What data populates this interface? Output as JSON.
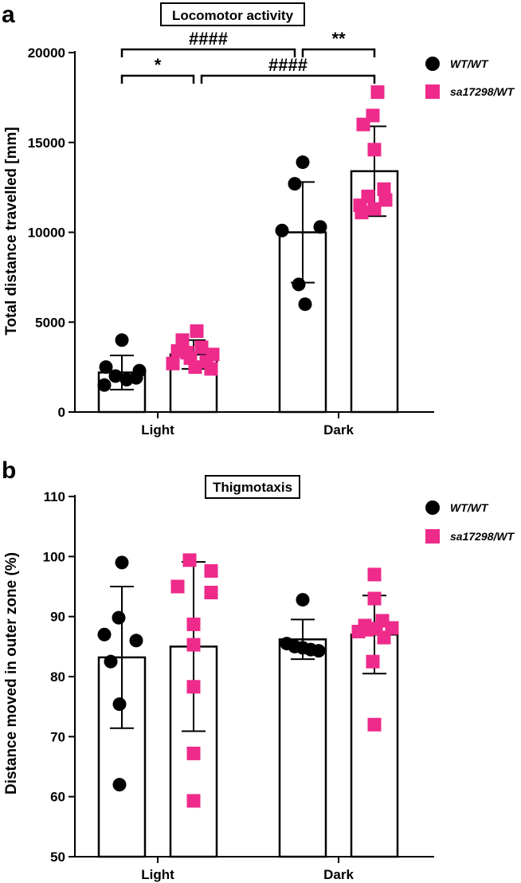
{
  "colors": {
    "wt": "#000000",
    "mut": "#ee2a8b"
  },
  "chart_data": [
    {
      "type": "bar",
      "panel_label": "a",
      "title": "Locomotor activity",
      "ylabel": "Total distance travelled [mm]",
      "ylim": [
        0,
        20000
      ],
      "yticks": [
        0,
        5000,
        10000,
        15000,
        20000
      ],
      "categories": [
        "Light",
        "Dark"
      ],
      "legend_position": "top-right",
      "series": [
        {
          "name": "WT/WT",
          "marker": "circle",
          "color": "#000000",
          "values": [
            2200,
            10000
          ],
          "error": [
            950,
            2800
          ],
          "points": [
            [
              4000,
              2500,
              2300,
              2000,
              1900,
              1500,
              1800
            ],
            [
              13900,
              12700,
              10300,
              10100,
              7100,
              6000
            ]
          ]
        },
        {
          "name": "sa17298/WT",
          "marker": "square",
          "color": "#ee2a8b",
          "values": [
            3200,
            13400
          ],
          "error": [
            800,
            2500
          ],
          "points": [
            [
              4500,
              4000,
              3600,
              3400,
              3200,
              3000,
              2800,
              2700,
              2500,
              2400,
              3300
            ],
            [
              17800,
              16500,
              16000,
              14600,
              12400,
              12000,
              11800,
              11500,
              11300,
              11100
            ]
          ]
        }
      ],
      "significance": [
        {
          "label": "####",
          "from": "Light WT/WT",
          "to": "Dark WT/WT"
        },
        {
          "label": "**",
          "from": "Dark WT/WT",
          "to": "Dark sa17298/WT"
        },
        {
          "label": "*",
          "from": "Light WT/WT",
          "to": "Light sa17298/WT"
        },
        {
          "label": "####",
          "from": "Light sa17298/WT",
          "to": "Dark sa17298/WT"
        }
      ]
    },
    {
      "type": "bar",
      "panel_label": "b",
      "title": "Thigmotaxis",
      "ylabel": "Distance moved in outer zone (%)",
      "ylim": [
        50,
        110
      ],
      "yticks": [
        50,
        60,
        70,
        80,
        90,
        100,
        110
      ],
      "categories": [
        "Light",
        "Dark"
      ],
      "legend_position": "top-right",
      "series": [
        {
          "name": "WT/WT",
          "marker": "circle",
          "color": "#000000",
          "values": [
            83.2,
            86.2
          ],
          "error": [
            11.8,
            3.3
          ],
          "points": [
            [
              99,
              89.8,
              87,
              86,
              82.5,
              75.4,
              62
            ],
            [
              92.8,
              85.5,
              85,
              84.8,
              84.5,
              84.3
            ]
          ]
        },
        {
          "name": "sa17298/WT",
          "marker": "square",
          "color": "#ee2a8b",
          "values": [
            85,
            87
          ],
          "error": [
            14.1,
            6.5
          ],
          "points": [
            [
              99.4,
              97.6,
              95,
              94,
              88.7,
              85.3,
              78.3,
              67.2,
              59.3
            ],
            [
              97,
              93,
              89.3,
              88.5,
              88.1,
              88,
              87.8,
              87.5,
              86.5,
              82.5,
              72
            ]
          ]
        }
      ]
    }
  ]
}
